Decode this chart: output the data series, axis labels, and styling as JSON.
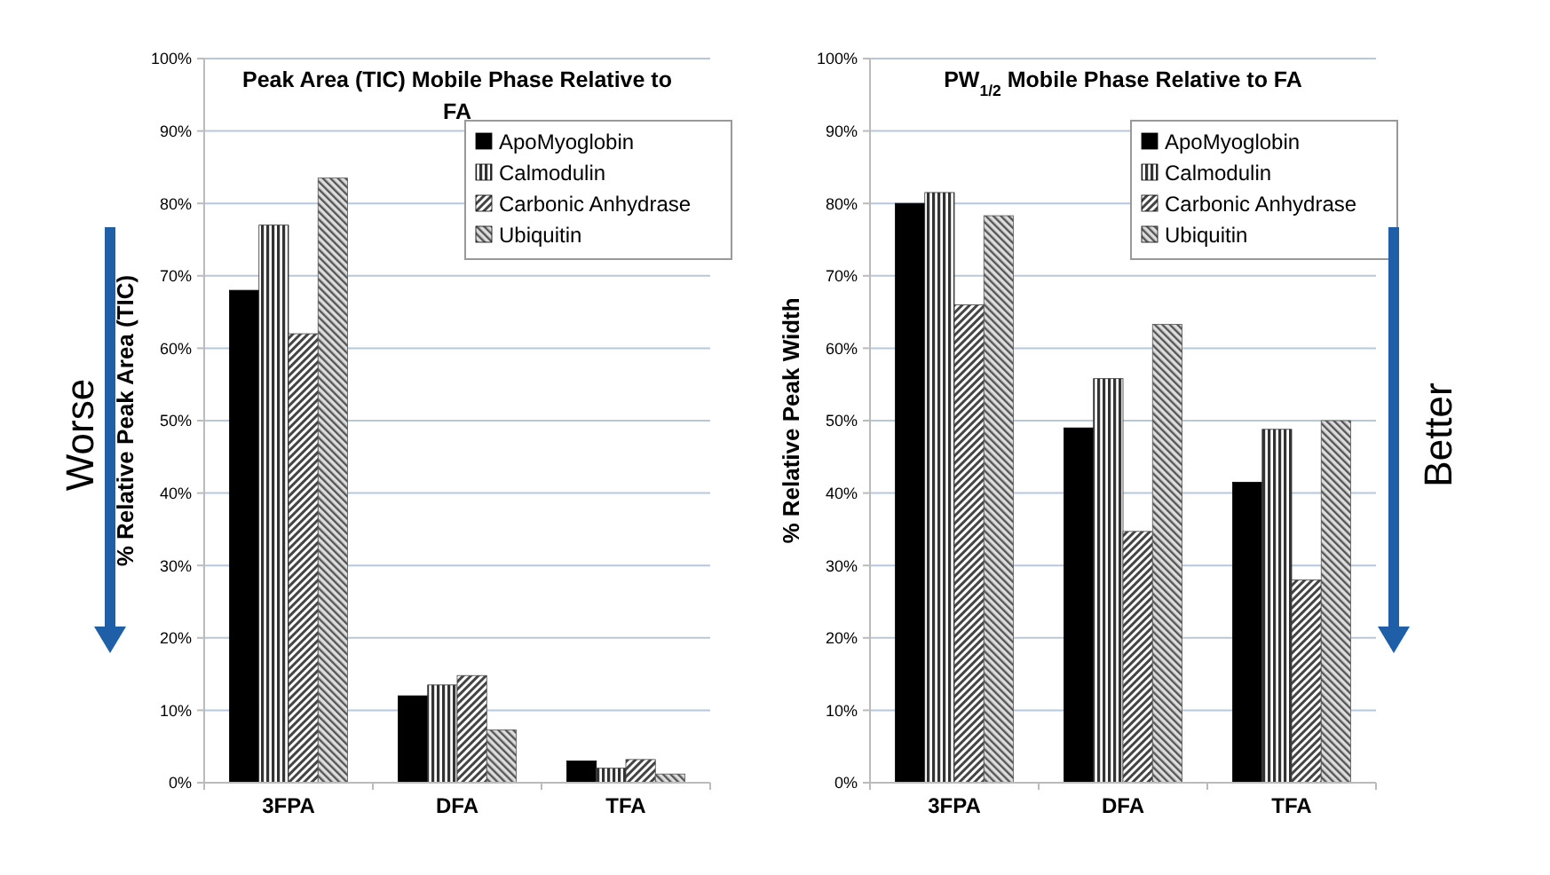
{
  "chart_data": [
    {
      "type": "bar",
      "title": "Peak Area (TIC) Mobile Phase  Relative to FA",
      "ylabel": "% Relative Peak Area (TIC)",
      "categories": [
        "3FPA",
        "DFA",
        "TFA"
      ],
      "series": [
        {
          "name": "ApoMyoglobin",
          "color": "#000000",
          "values": [
            68,
            12,
            3
          ]
        },
        {
          "name": "Calmodulin",
          "color": "#333333",
          "values": [
            77,
            13.5,
            2
          ]
        },
        {
          "name": "Carbonic Anhydrase",
          "color": "#444444",
          "values": [
            62,
            14.8,
            3.2
          ]
        },
        {
          "name": "Ubiquitin",
          "color": "#555555",
          "values": [
            83.5,
            7.3,
            1.2
          ]
        }
      ],
      "ylim": [
        0,
        100
      ],
      "yticks": [
        {
          "value": 0,
          "label": "0%"
        },
        {
          "value": 10,
          "label": "10%"
        },
        {
          "value": 20,
          "label": "20%"
        },
        {
          "value": 30,
          "label": "30%"
        },
        {
          "value": 40,
          "label": "40%"
        },
        {
          "value": 50,
          "label": "50%"
        },
        {
          "value": 60,
          "label": "60%"
        },
        {
          "value": 70,
          "label": "70%"
        },
        {
          "value": 80,
          "label": "80%"
        },
        {
          "value": 90,
          "label": "90%"
        },
        {
          "value": 100,
          "label": "100%"
        }
      ],
      "grid": "y",
      "legend": "top right",
      "annotations": [
        "Worse"
      ]
    },
    {
      "type": "bar",
      "title": "PW$_{1/2}$ Mobile Phase Relative to FA",
      "ylabel": "% Relative Peak Width",
      "categories": [
        "3FPA",
        "DFA",
        "TFA"
      ],
      "series": [
        {
          "name": "ApoMyoglobin",
          "color": "#000000",
          "values": [
            80,
            49,
            41.5
          ]
        },
        {
          "name": "Calmodulin",
          "color": "#333333",
          "values": [
            81.5,
            55.8,
            48.8
          ]
        },
        {
          "name": "Carbonic Anhydrase",
          "color": "#444444",
          "values": [
            66,
            34.7,
            28
          ]
        },
        {
          "name": "Ubiquitin",
          "color": "#555555",
          "values": [
            78.3,
            63.3,
            50
          ]
        }
      ],
      "ylim": [
        0,
        100
      ],
      "yticks": [
        {
          "value": 0,
          "label": "0%"
        },
        {
          "value": 10,
          "label": "10%"
        },
        {
          "value": 20,
          "label": "20%"
        },
        {
          "value": 30,
          "label": "30%"
        },
        {
          "value": 40,
          "label": "40%"
        },
        {
          "value": 50,
          "label": "50%"
        },
        {
          "value": 60,
          "label": "60%"
        },
        {
          "value": 70,
          "label": "70%"
        },
        {
          "value": 80,
          "label": "80%"
        },
        {
          "value": 90,
          "label": "90%"
        },
        {
          "value": 100,
          "label": "100%"
        }
      ],
      "grid": "y",
      "legend": "top right",
      "annotations": [
        "Better"
      ]
    }
  ]
}
